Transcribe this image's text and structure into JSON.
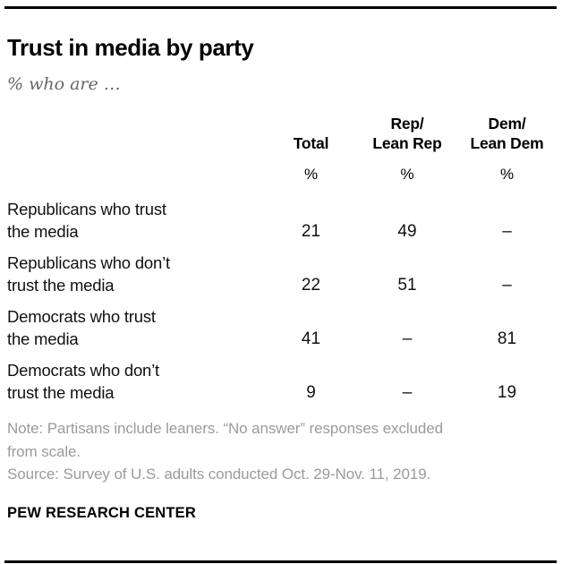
{
  "title": "Trust in media by party",
  "subtitle": "% who are …",
  "table": {
    "columns": [
      {
        "line1": "",
        "line2": "Total"
      },
      {
        "line1": "Rep/",
        "line2": "Lean Rep"
      },
      {
        "line1": "Dem/",
        "line2": "Lean Dem"
      }
    ],
    "unit": "%",
    "rows": [
      {
        "line1": "Republicans who trust",
        "line2": "the media",
        "values": [
          "21",
          "49",
          "–"
        ]
      },
      {
        "line1": "Republicans who don’t",
        "line2": "trust the media",
        "values": [
          "22",
          "51",
          "–"
        ]
      },
      {
        "line1": "Democrats who trust",
        "line2": "the media",
        "values": [
          "41",
          "–",
          "81"
        ]
      },
      {
        "line1": "Democrats who don’t",
        "line2": "trust the media",
        "values": [
          "9",
          "–",
          "19"
        ]
      }
    ]
  },
  "footer": {
    "note_lines": [
      "Note: Partisans include leaners. “No answer” responses excluded",
      "from scale."
    ],
    "source": "Source: Survey of U.S. adults conducted Oct. 29-Nov. 11, 2019.",
    "brand": "PEW RESEARCH CENTER"
  },
  "colors": {
    "text": "#000000",
    "subtitle_gray": "#666666",
    "note_gray": "#9b9b9b",
    "rule_black": "#000000"
  },
  "chart_data": {
    "type": "table",
    "title": "Trust in media by party",
    "subtitle": "% who are …",
    "columns": [
      "Total",
      "Rep/Lean Rep",
      "Dem/Lean Dem"
    ],
    "unit": "%",
    "rows": [
      {
        "label": "Republicans who trust the media",
        "values": [
          21,
          49,
          null
        ]
      },
      {
        "label": "Republicans who don’t trust the media",
        "values": [
          22,
          51,
          null
        ]
      },
      {
        "label": "Democrats who trust the media",
        "values": [
          41,
          null,
          81
        ]
      },
      {
        "label": "Democrats who don’t trust the media",
        "values": [
          9,
          null,
          19
        ]
      }
    ],
    "missing_value_symbol": "–",
    "note": "Note: Partisans include leaners. “No answer” responses excluded from scale.",
    "source": "Source: Survey of U.S. adults conducted Oct. 29-Nov. 11, 2019.",
    "branding": "PEW RESEARCH CENTER"
  }
}
